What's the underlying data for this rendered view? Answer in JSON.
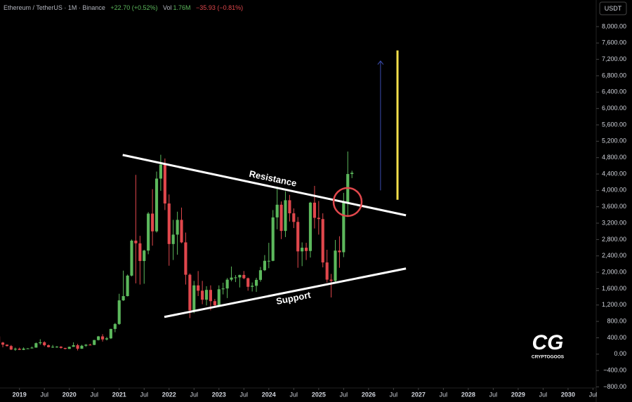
{
  "chart_data": {
    "type": "candlestick",
    "header": {
      "symbol": "Ethereum / TetherUS · 1M · Binance",
      "change": "+22.70 (+0.52%)",
      "vol_label": "Vol",
      "vol_value": "1.76M",
      "change2": "−35.93 (−0.81%)"
    },
    "currency_button": "USDT",
    "watermark": {
      "logo": "CG",
      "name": "CRYPTOGOOS"
    },
    "up_color": "#5cb85c",
    "down_color": "#e0474c",
    "xlim": [
      2018.61,
      2030.55
    ],
    "ylim": [
      -860,
      8650
    ],
    "grid": false,
    "x": [
      2018.583,
      2018.667,
      2018.75,
      2018.833,
      2018.917,
      2019,
      2019.083,
      2019.167,
      2019.25,
      2019.333,
      2019.417,
      2019.5,
      2019.583,
      2019.667,
      2019.75,
      2019.833,
      2019.917,
      2020,
      2020.083,
      2020.167,
      2020.25,
      2020.333,
      2020.417,
      2020.5,
      2020.583,
      2020.667,
      2020.75,
      2020.833,
      2020.917,
      2021,
      2021.083,
      2021.167,
      2021.25,
      2021.333,
      2021.417,
      2021.5,
      2021.583,
      2021.667,
      2021.75,
      2021.833,
      2021.917,
      2022,
      2022.083,
      2022.167,
      2022.25,
      2022.333,
      2022.417,
      2022.5,
      2022.583,
      2022.667,
      2022.75,
      2022.833,
      2022.917,
      2023,
      2023.083,
      2023.167,
      2023.25,
      2023.333,
      2023.417,
      2023.5,
      2023.583,
      2023.667,
      2023.75,
      2023.833,
      2023.917,
      2024,
      2024.083,
      2024.167,
      2024.25,
      2024.333,
      2024.417,
      2024.5,
      2024.583,
      2024.667,
      2024.75,
      2024.833,
      2024.917,
      2025,
      2025.083,
      2025.167,
      2025.25,
      2025.333,
      2025.417,
      2025.5,
      2025.583,
      2025.667
    ],
    "open": [
      433,
      283,
      232,
      198,
      113,
      133,
      106,
      136,
      141,
      160,
      268,
      290,
      218,
      172,
      180,
      182,
      152,
      129,
      179,
      218,
      133,
      206,
      231,
      226,
      345,
      434,
      360,
      386,
      616,
      737,
      1314,
      1418,
      1918,
      2773,
      2707,
      2275,
      2530,
      3433,
      3000,
      4288,
      4630,
      3680,
      2690,
      2920,
      3280,
      2730,
      1940,
      1070,
      1680,
      1550,
      1330,
      1570,
      1295,
      1195,
      1585,
      1605,
      1820,
      1870,
      1875,
      1935,
      1855,
      1645,
      1670,
      1815,
      2050,
      2280,
      2280,
      3340,
      3650,
      3010,
      3760,
      3440,
      3230,
      2510,
      2600,
      2520,
      3700,
      3330,
      3300,
      2240,
      1820,
      1790,
      2530,
      2490,
      3700,
      4400
    ],
    "high": [
      435,
      300,
      237,
      225,
      160,
      160,
      165,
      148,
      185,
      285,
      365,
      315,
      237,
      225,
      200,
      195,
      155,
      185,
      288,
      253,
      227,
      246,
      254,
      350,
      445,
      488,
      420,
      620,
      760,
      1475,
      2040,
      1945,
      2800,
      4380,
      2890,
      2550,
      3470,
      4030,
      4460,
      4870,
      4780,
      3900,
      3280,
      3480,
      3580,
      2970,
      1970,
      1790,
      2030,
      1790,
      1660,
      1680,
      1350,
      1680,
      1745,
      1860,
      2140,
      1930,
      1940,
      2030,
      1870,
      1750,
      1865,
      2130,
      2420,
      2720,
      3520,
      4090,
      3730,
      3980,
      3890,
      3560,
      3350,
      2730,
      2720,
      3720,
      4110,
      3740,
      3440,
      2550,
      1960,
      2790,
      2880,
      3940,
      4950,
      4480
    ],
    "low": [
      250,
      167,
      188,
      100,
      82,
      100,
      100,
      126,
      140,
      158,
      230,
      190,
      163,
      152,
      155,
      135,
      117,
      127,
      178,
      90,
      130,
      178,
      217,
      220,
      335,
      308,
      335,
      370,
      535,
      715,
      1300,
      1410,
      1900,
      1730,
      1700,
      1720,
      2440,
      2650,
      2970,
      3990,
      3520,
      2160,
      2300,
      2430,
      2710,
      1700,
      880,
      1000,
      1420,
      1220,
      1190,
      1070,
      1160,
      1190,
      1460,
      1370,
      1780,
      1760,
      1630,
      1830,
      1550,
      1530,
      1520,
      1770,
      2030,
      2100,
      2270,
      3050,
      2810,
      2860,
      3240,
      3080,
      2110,
      2150,
      2300,
      2360,
      3070,
      2920,
      2120,
      1750,
      1385,
      1750,
      2110,
      2370,
      3350,
      4300
    ],
    "close": [
      283,
      232,
      198,
      113,
      133,
      106,
      136,
      141,
      160,
      268,
      290,
      218,
      172,
      180,
      182,
      152,
      129,
      179,
      218,
      133,
      206,
      231,
      226,
      345,
      434,
      360,
      386,
      616,
      737,
      1314,
      1418,
      1918,
      2773,
      2707,
      2275,
      2530,
      3433,
      3000,
      4288,
      4630,
      3680,
      2690,
      2920,
      3280,
      2730,
      1940,
      1070,
      1680,
      1550,
      1330,
      1570,
      1295,
      1195,
      1585,
      1605,
      1820,
      1870,
      1875,
      1935,
      1855,
      1645,
      1670,
      1815,
      2050,
      2280,
      2280,
      3340,
      3650,
      3010,
      3760,
      3440,
      3230,
      2510,
      2600,
      2520,
      3700,
      3330,
      3300,
      2240,
      1820,
      1790,
      2530,
      2490,
      3700,
      4400,
      4430
    ],
    "yticks": [
      {
        "value": 8000,
        "label": "8,000.00"
      },
      {
        "value": 7600,
        "label": "7,600.00"
      },
      {
        "value": 7200,
        "label": "7,200.00"
      },
      {
        "value": 6800,
        "label": "6,800.00"
      },
      {
        "value": 6400,
        "label": "6,400.00"
      },
      {
        "value": 6000,
        "label": "6,000.00"
      },
      {
        "value": 5600,
        "label": "5,600.00"
      },
      {
        "value": 5200,
        "label": "5,200.00"
      },
      {
        "value": 4800,
        "label": "4,800.00"
      },
      {
        "value": 4400,
        "label": "4,400.00"
      },
      {
        "value": 4000,
        "label": "4,000.00"
      },
      {
        "value": 3600,
        "label": "3,600.00"
      },
      {
        "value": 3200,
        "label": "3,200.00"
      },
      {
        "value": 2800,
        "label": "2,800.00"
      },
      {
        "value": 2400,
        "label": "2,400.00"
      },
      {
        "value": 2000,
        "label": "2,000.00"
      },
      {
        "value": 1600,
        "label": "1,600.00"
      },
      {
        "value": 1200,
        "label": "1,200.00"
      },
      {
        "value": 800,
        "label": "800.00"
      },
      {
        "value": 400,
        "label": "400.00"
      },
      {
        "value": 0,
        "label": "0.00"
      },
      {
        "value": -400,
        "label": "−400.00"
      },
      {
        "value": -800,
        "label": "−800.00"
      }
    ],
    "xticks": [
      2019,
      {
        "value": 2019.5,
        "label": "Jul"
      },
      2020,
      {
        "value": 2020.5,
        "label": "Jul"
      },
      2021,
      {
        "value": 2021.5,
        "label": "Jul"
      },
      2022,
      {
        "value": 2022.5,
        "label": "Jul"
      },
      2023,
      {
        "value": 2023.5,
        "label": "Jul"
      },
      2024,
      {
        "value": 2024.5,
        "label": "Jul"
      },
      2025,
      {
        "value": 2025.5,
        "label": "Jul"
      },
      2026,
      {
        "value": 2026.5,
        "label": "Jul"
      },
      2027,
      {
        "value": 2027.5,
        "label": "Jul"
      },
      2028,
      {
        "value": 2028.5,
        "label": "Jul"
      },
      2029,
      {
        "value": 2029.5,
        "label": "Jul"
      },
      2030,
      {
        "value": 2030.5,
        "label": "Jul"
      }
    ],
    "trendlines": [
      {
        "label": "Resistance",
        "x": [
          2021.07,
          2026.75
        ],
        "y": [
          4865,
          3392
        ],
        "side": "above"
      },
      {
        "label": "Support",
        "x": [
          2021.905,
          2026.75
        ],
        "y": [
          909,
          2091
        ],
        "side": "below"
      }
    ],
    "circle": {
      "x": 2025.58,
      "y": 3718,
      "color": "#e0474c"
    },
    "arrow": {
      "x": 2026.24,
      "y": [
        4000,
        7160
      ],
      "color": "#3b4db0"
    },
    "target_bar": {
      "x": 2026.58,
      "y": [
        3770,
        7418
      ],
      "color": "#f5e04a"
    }
  }
}
